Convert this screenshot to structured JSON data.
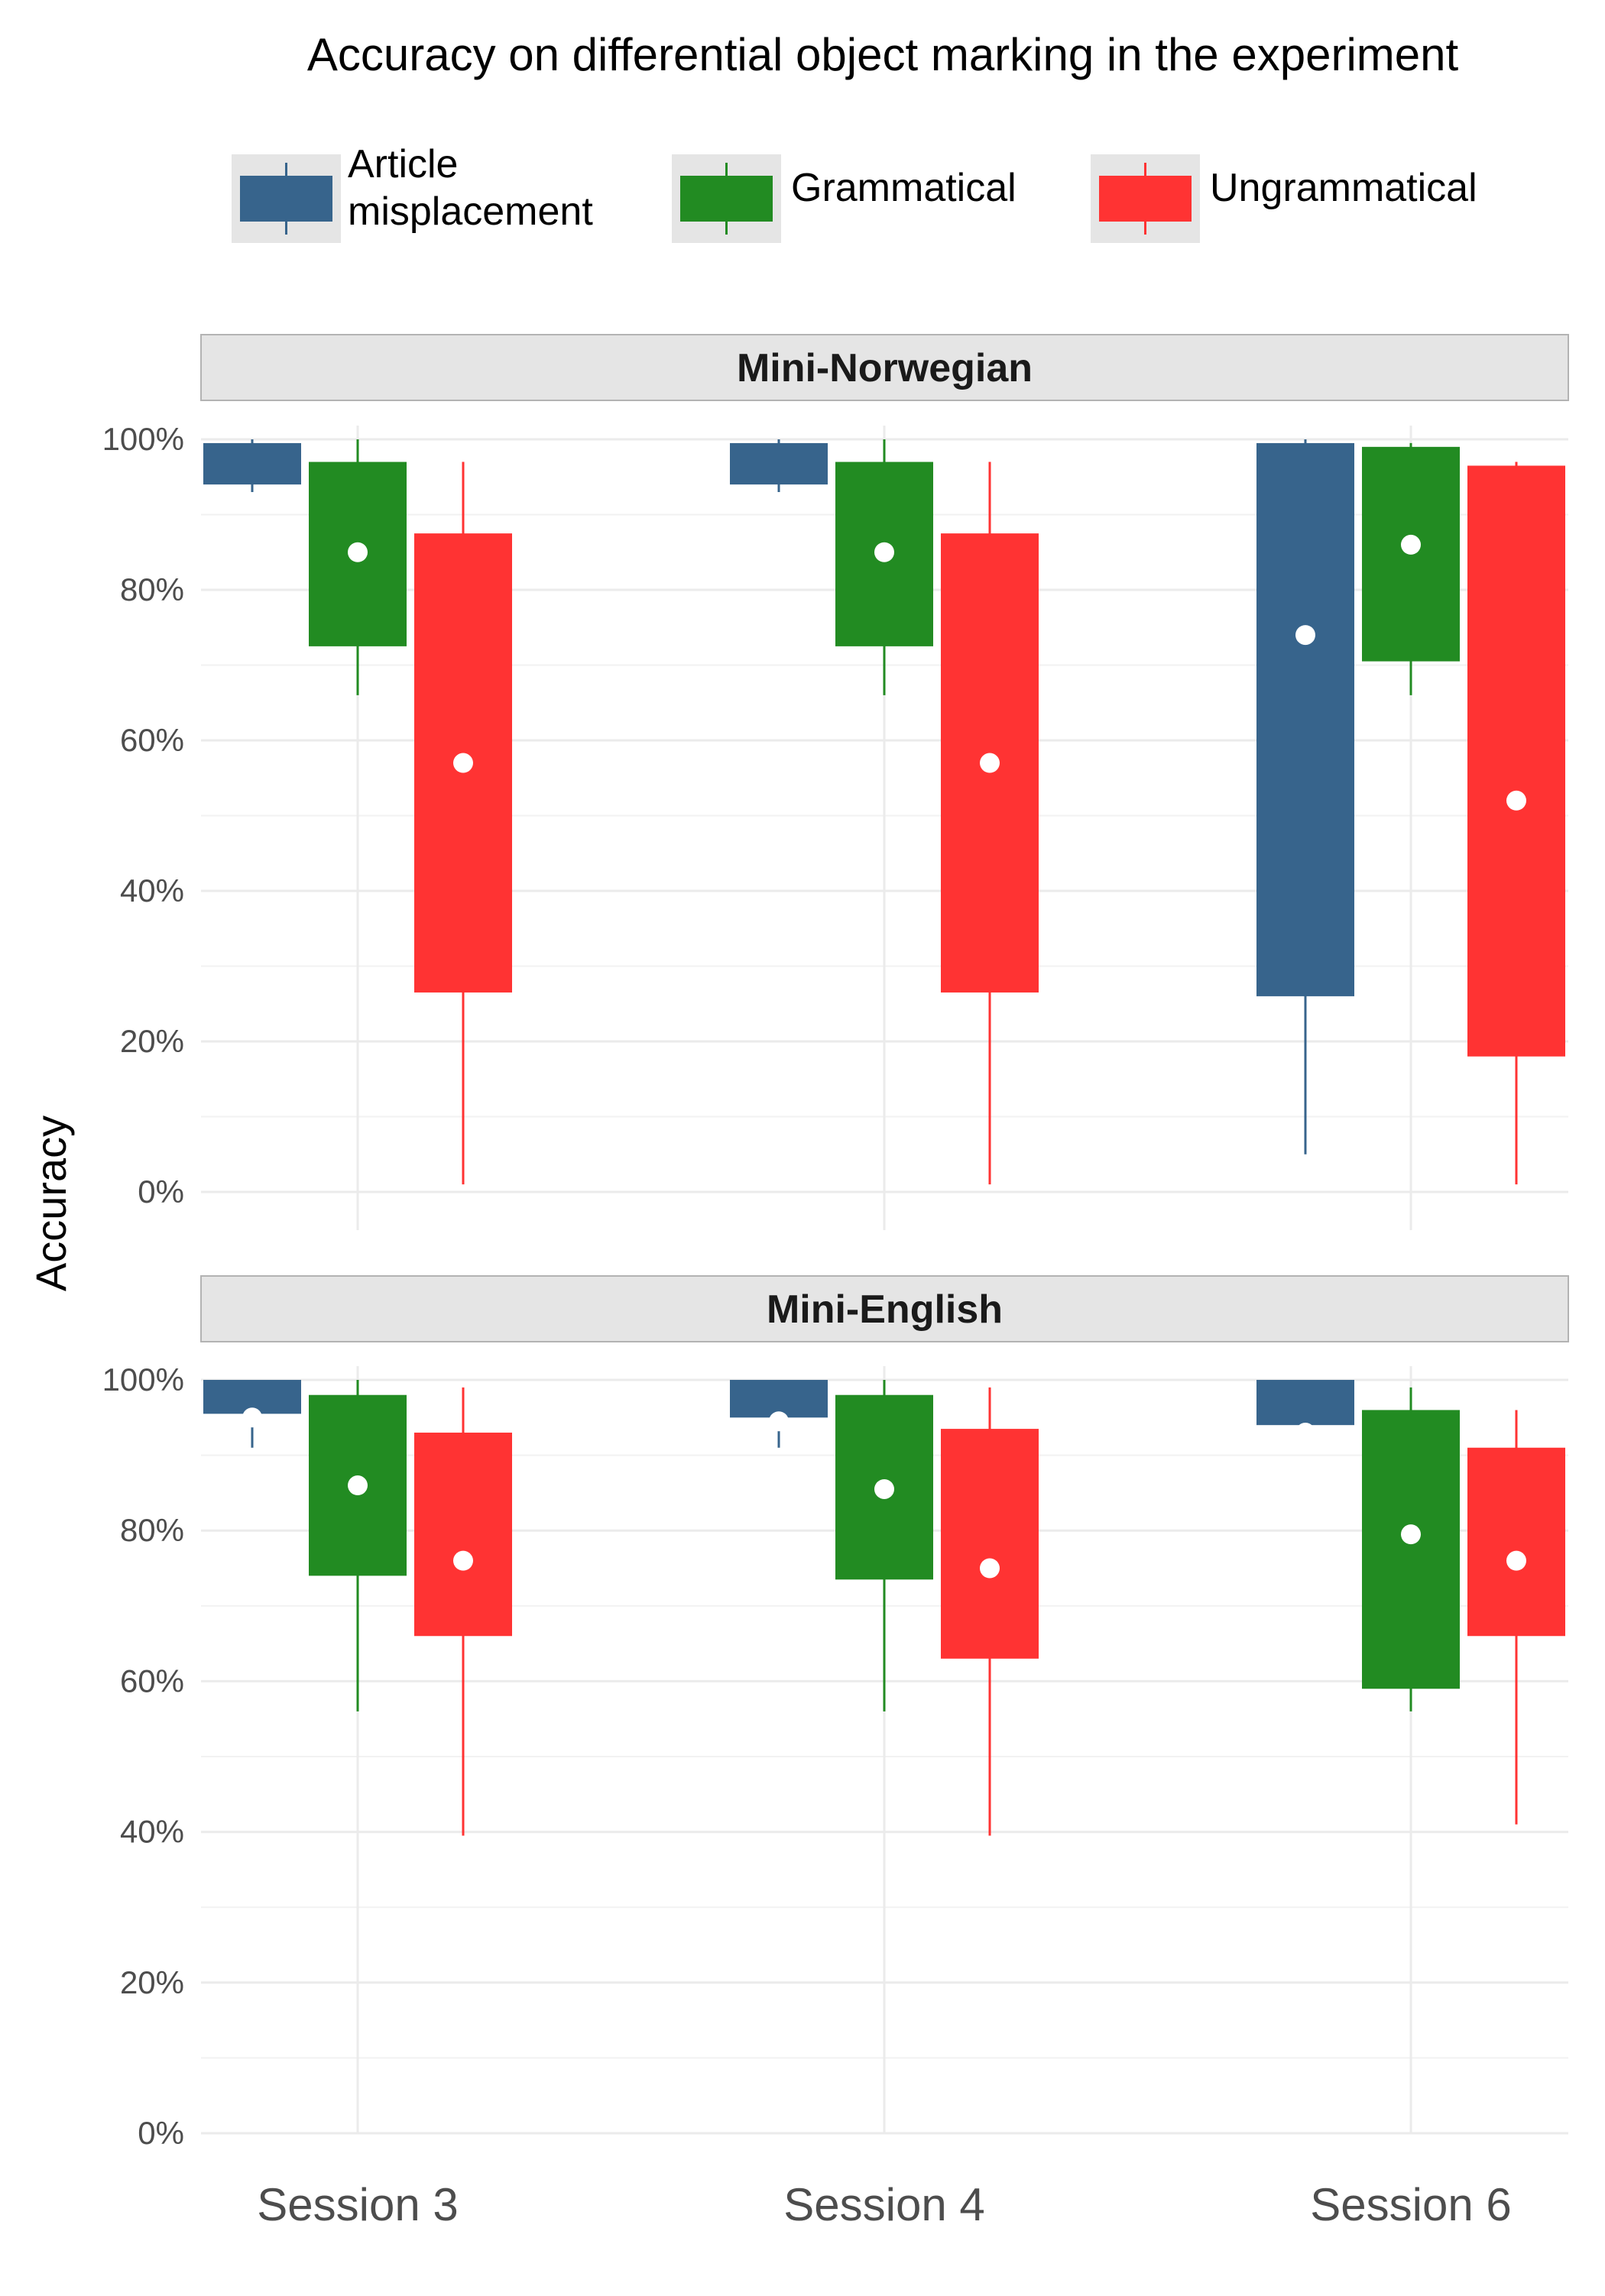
{
  "chart_data": {
    "type": "boxplot",
    "title": "Accuracy on differential object marking in the experiment",
    "ylabel": "Accuracy",
    "xlabel": "",
    "categories": [
      "Session 3",
      "Session 4",
      "Session 6"
    ],
    "y_ticks": [
      "0%",
      "20%",
      "40%",
      "60%",
      "80%",
      "100%"
    ],
    "ylim": [
      0,
      100
    ],
    "grid": true,
    "legend": {
      "position": "top",
      "entries": [
        {
          "label": "Article\nmisplacement",
          "color": "#37648c"
        },
        {
          "label": "Grammatical",
          "color": "#228b22"
        },
        {
          "label": "Ungrammatical",
          "color": "#ff3333"
        }
      ]
    },
    "panels": [
      {
        "title": "Mini-Norwegian",
        "series": [
          {
            "name": "Article misplacement",
            "color": "#37648c",
            "boxes": [
              {
                "category": "Session 3",
                "whisker_low": 93,
                "q1": 94,
                "q3": 99.5,
                "whisker_high": 100,
                "mean": null
              },
              {
                "category": "Session 4",
                "whisker_low": 93,
                "q1": 94,
                "q3": 99.5,
                "whisker_high": 100,
                "mean": null
              },
              {
                "category": "Session 6",
                "whisker_low": 5,
                "q1": 26,
                "q3": 99.5,
                "whisker_high": 100,
                "mean": 74
              }
            ]
          },
          {
            "name": "Grammatical",
            "color": "#228b22",
            "boxes": [
              {
                "category": "Session 3",
                "whisker_low": 66,
                "q1": 72.5,
                "q3": 97,
                "whisker_high": 100,
                "mean": 85
              },
              {
                "category": "Session 4",
                "whisker_low": 66,
                "q1": 72.5,
                "q3": 97,
                "whisker_high": 100,
                "mean": 85
              },
              {
                "category": "Session 6",
                "whisker_low": 66,
                "q1": 70.5,
                "q3": 99,
                "whisker_high": 99.5,
                "mean": 86
              }
            ]
          },
          {
            "name": "Ungrammatical",
            "color": "#ff3333",
            "boxes": [
              {
                "category": "Session 3",
                "whisker_low": 1,
                "q1": 26.5,
                "q3": 87.5,
                "whisker_high": 97,
                "mean": 57
              },
              {
                "category": "Session 4",
                "whisker_low": 1,
                "q1": 26.5,
                "q3": 87.5,
                "whisker_high": 97,
                "mean": 57
              },
              {
                "category": "Session 6",
                "whisker_low": 1,
                "q1": 18,
                "q3": 96.5,
                "whisker_high": 97,
                "mean": 52
              }
            ]
          }
        ]
      },
      {
        "title": "Mini-English",
        "series": [
          {
            "name": "Article misplacement",
            "color": "#37648c",
            "boxes": [
              {
                "category": "Session 3",
                "whisker_low": 91,
                "q1": 95.5,
                "q3": 100,
                "whisker_high": 100,
                "mean": 95
              },
              {
                "category": "Session 4",
                "whisker_low": 91,
                "q1": 95,
                "q3": 100,
                "whisker_high": 100,
                "mean": 94.5
              },
              {
                "category": "Session 6",
                "whisker_low": 93,
                "q1": 94,
                "q3": 100,
                "whisker_high": 100,
                "mean": 93
              }
            ]
          },
          {
            "name": "Grammatical",
            "color": "#228b22",
            "boxes": [
              {
                "category": "Session 3",
                "whisker_low": 56,
                "q1": 74,
                "q3": 98,
                "whisker_high": 100,
                "mean": 86
              },
              {
                "category": "Session 4",
                "whisker_low": 56,
                "q1": 73.5,
                "q3": 98,
                "whisker_high": 100,
                "mean": 85.5
              },
              {
                "category": "Session 6",
                "whisker_low": 56,
                "q1": 59,
                "q3": 96,
                "whisker_high": 99,
                "mean": 79.5
              }
            ]
          },
          {
            "name": "Ungrammatical",
            "color": "#ff3333",
            "boxes": [
              {
                "category": "Session 3",
                "whisker_low": 39.5,
                "q1": 66,
                "q3": 93,
                "whisker_high": 99,
                "mean": 76
              },
              {
                "category": "Session 4",
                "whisker_low": 39.5,
                "q1": 63,
                "q3": 93.5,
                "whisker_high": 99,
                "mean": 75
              },
              {
                "category": "Session 6",
                "whisker_low": 41,
                "q1": 66,
                "q3": 91,
                "whisker_high": 96,
                "mean": 76
              }
            ]
          }
        ]
      }
    ]
  }
}
